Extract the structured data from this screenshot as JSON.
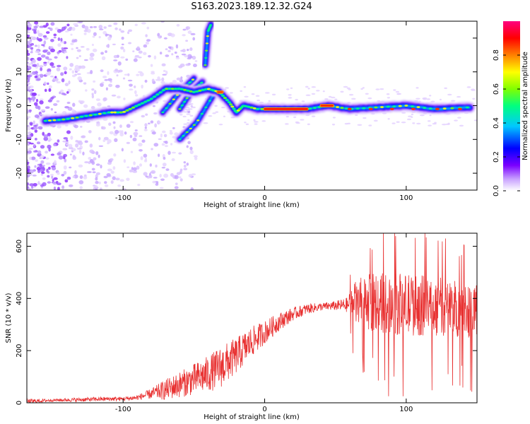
{
  "title": "S163.2023.189.12.32.G24",
  "chart_data": [
    {
      "type": "heatmap",
      "name": "spectrogram",
      "xlabel": "Height of straight line (km)",
      "ylabel": "Frequency (Hz)",
      "xlim": [
        -168,
        150
      ],
      "ylim": [
        -25,
        25
      ],
      "xticks": [
        -100,
        0,
        100
      ],
      "yticks": [
        -20,
        -10,
        0,
        10,
        20
      ],
      "colorbar": {
        "label": "Normalized spectral amplitude",
        "range": [
          0,
          1
        ],
        "ticks": [
          "0.0",
          "0.2",
          "0.4",
          "0.6",
          "0.8"
        ],
        "tick_values": [
          0.0,
          0.2,
          0.4,
          0.6,
          0.8
        ],
        "colors": [
          "#ffffff",
          "#c8a0ff",
          "#7a00ff",
          "#0000ff",
          "#00c8ff",
          "#00ff80",
          "#80ff00",
          "#ffff00",
          "#ff8000",
          "#ff0000",
          "#ff0080"
        ]
      },
      "main_trace": [
        [
          -155,
          -4.5
        ],
        [
          -140,
          -4
        ],
        [
          -125,
          -3
        ],
        [
          -110,
          -2
        ],
        [
          -100,
          -2
        ],
        [
          -90,
          0
        ],
        [
          -80,
          2
        ],
        [
          -70,
          5
        ],
        [
          -60,
          5
        ],
        [
          -50,
          4
        ],
        [
          -40,
          5
        ],
        [
          -32,
          4
        ],
        [
          -25,
          1
        ],
        [
          -20,
          -2
        ],
        [
          -15,
          0
        ],
        [
          -5,
          -1
        ],
        [
          10,
          -1
        ],
        [
          30,
          -1
        ],
        [
          45,
          0
        ],
        [
          60,
          -1
        ],
        [
          80,
          -0.5
        ],
        [
          100,
          0
        ],
        [
          120,
          -1
        ],
        [
          145,
          -0.5
        ]
      ],
      "side_traces": [
        [
          [
            -72,
            -2
          ],
          [
            -60,
            4
          ],
          [
            -50,
            8
          ]
        ],
        [
          [
            -60,
            -1
          ],
          [
            -52,
            4
          ],
          [
            -44,
            7
          ]
        ],
        [
          [
            -60,
            -10
          ],
          [
            -48,
            -5
          ],
          [
            -35,
            4
          ]
        ],
        [
          [
            -42,
            12
          ],
          [
            -40,
            22
          ],
          [
            -38,
            24
          ]
        ]
      ]
    },
    {
      "type": "line",
      "name": "snr",
      "xlabel": "Height of straight line (km)",
      "ylabel": "SNR (10 * v/v)",
      "xlim": [
        -168,
        150
      ],
      "ylim": [
        0,
        650
      ],
      "xticks": [
        -100,
        0,
        100
      ],
      "yticks": [
        0,
        200,
        400,
        600
      ],
      "color": "#e83030",
      "envelope": [
        [
          -168,
          5,
          10
        ],
        [
          -150,
          10,
          5
        ],
        [
          -130,
          12,
          8
        ],
        [
          -110,
          15,
          8
        ],
        [
          -100,
          15,
          8
        ],
        [
          -90,
          20,
          10
        ],
        [
          -80,
          35,
          20
        ],
        [
          -70,
          50,
          40
        ],
        [
          -60,
          70,
          50
        ],
        [
          -50,
          90,
          60
        ],
        [
          -40,
          110,
          70
        ],
        [
          -30,
          140,
          80
        ],
        [
          -20,
          180,
          70
        ],
        [
          -10,
          230,
          60
        ],
        [
          0,
          270,
          45
        ],
        [
          10,
          310,
          35
        ],
        [
          20,
          340,
          25
        ],
        [
          30,
          360,
          20
        ],
        [
          40,
          368,
          15
        ],
        [
          50,
          372,
          18
        ],
        [
          58,
          375,
          28
        ],
        [
          65,
          385,
          90
        ],
        [
          80,
          385,
          120
        ],
        [
          100,
          375,
          120
        ],
        [
          120,
          370,
          115
        ],
        [
          140,
          360,
          110
        ],
        [
          150,
          360,
          110
        ]
      ]
    }
  ]
}
